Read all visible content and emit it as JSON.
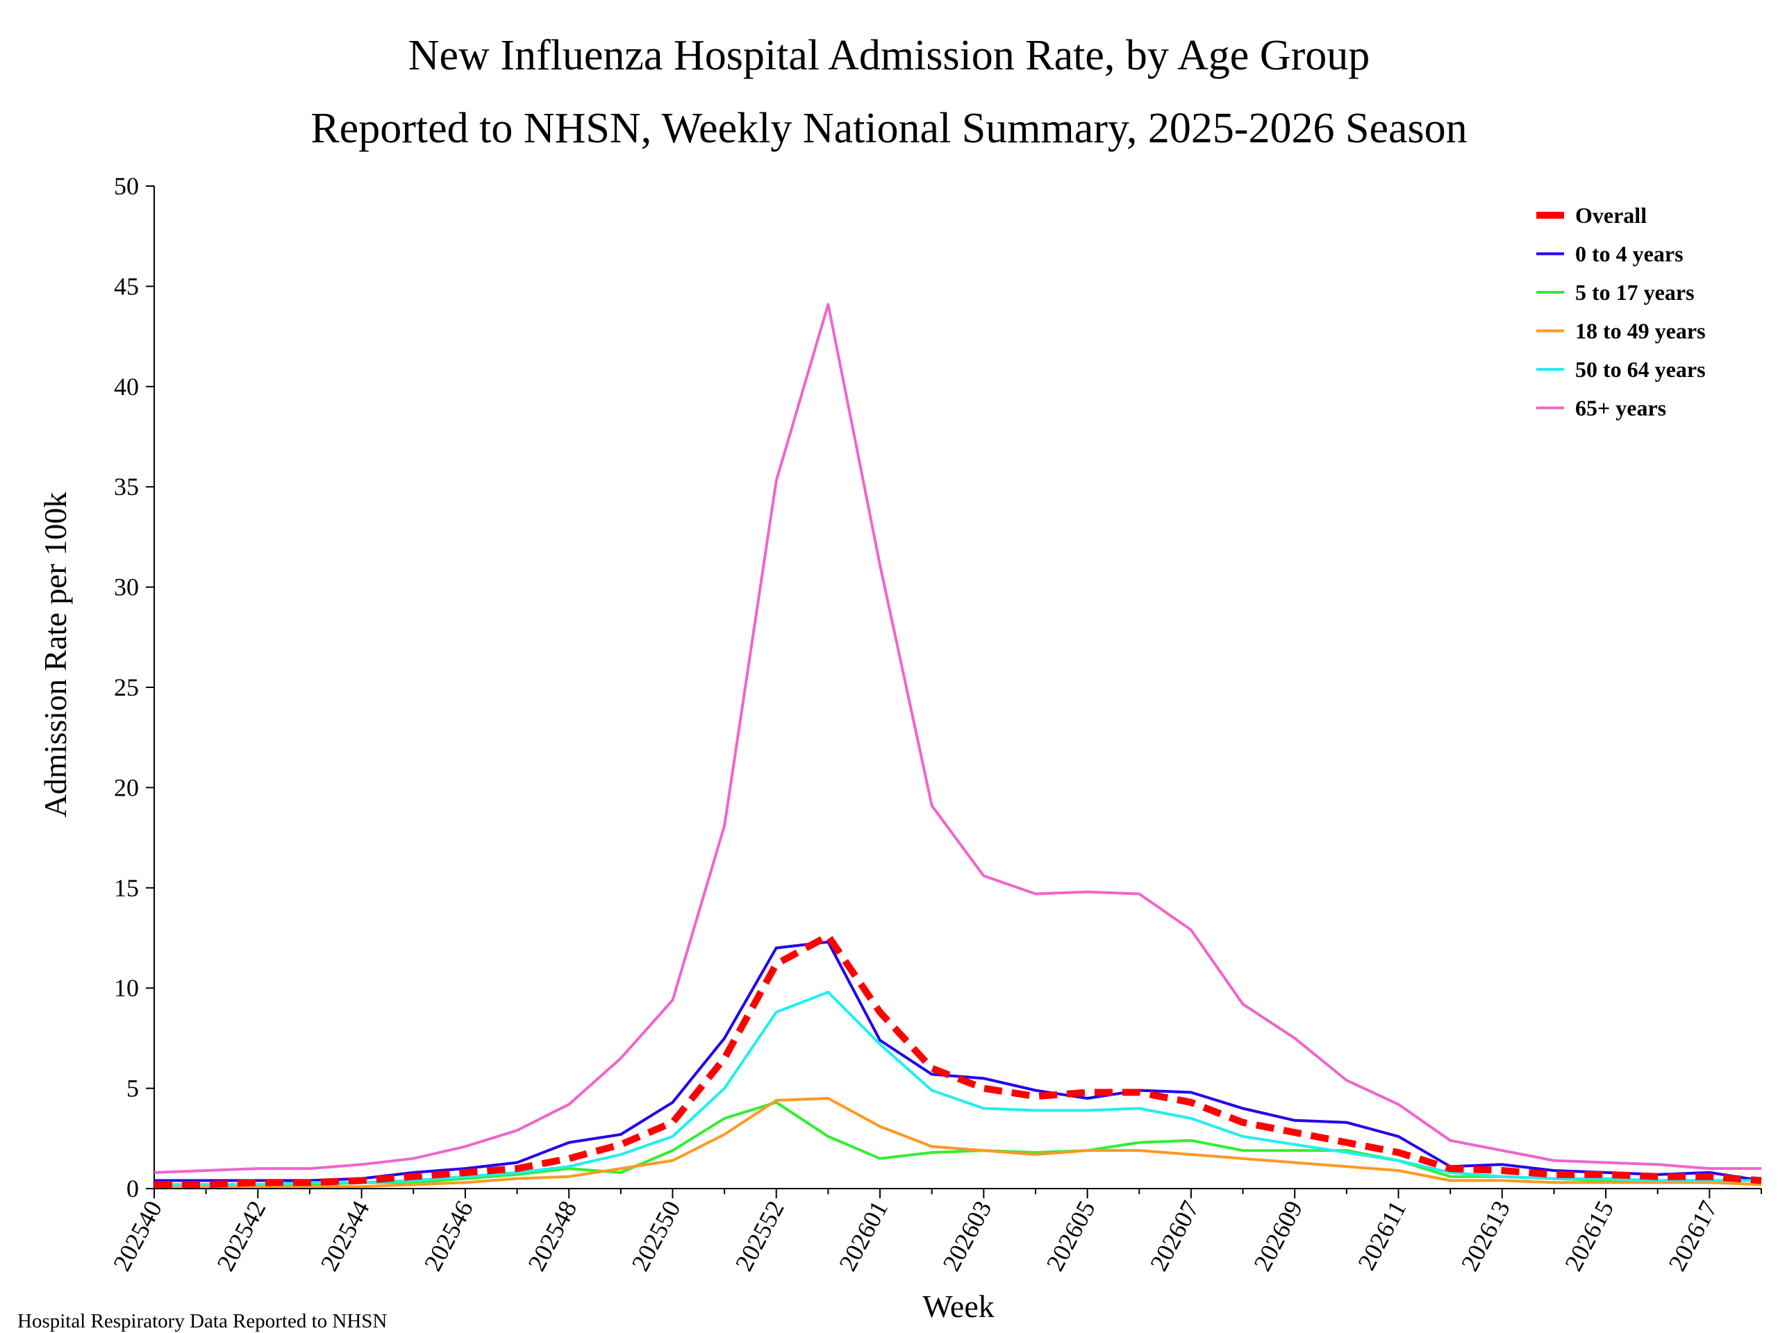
{
  "chart_data": {
    "type": "line",
    "title": "New Influenza Hospital Admission Rate, by Age Group",
    "subtitle": "Reported to NHSN, Weekly National Summary, 2025-2026 Season",
    "xlabel": "Week",
    "ylabel": "Admission Rate per 100k",
    "footnote": "Hospital Respiratory Data Reported to NHSN",
    "ylim": [
      0,
      50
    ],
    "yticks": [
      "0",
      "5",
      "10",
      "15",
      "20",
      "25",
      "30",
      "35",
      "40",
      "45",
      "50"
    ],
    "grid": false,
    "legend_position": "top-right",
    "x": [
      "202540",
      "202541",
      "202542",
      "202543",
      "202544",
      "202545",
      "202546",
      "202547",
      "202548",
      "202549",
      "202550",
      "202551",
      "202552",
      "202553",
      "202601",
      "202602",
      "202603",
      "202604",
      "202605",
      "202606",
      "202607",
      "202608",
      "202609",
      "202610",
      "202611",
      "202612",
      "202613",
      "202614",
      "202615",
      "202616",
      "202617",
      "202618"
    ],
    "xtick_labels": [
      "202540",
      "202542",
      "202544",
      "202546",
      "202548",
      "202550",
      "202552",
      "202601",
      "202603",
      "202605",
      "202607",
      "202609",
      "202611",
      "202613",
      "202615",
      "202617"
    ],
    "series": [
      {
        "name": "Overall",
        "color": "#ff0000",
        "dashed": true,
        "values": [
          0.2,
          0.2,
          0.3,
          0.3,
          0.4,
          0.6,
          0.8,
          1.0,
          1.5,
          2.2,
          3.3,
          6.5,
          11.2,
          12.6,
          8.8,
          6.0,
          5.0,
          4.6,
          4.8,
          4.8,
          4.3,
          3.3,
          2.8,
          2.3,
          1.8,
          1.0,
          0.9,
          0.7,
          0.7,
          0.6,
          0.6,
          0.4
        ]
      },
      {
        "name": "0 to 4 years",
        "color": "#2200ee",
        "values": [
          0.4,
          0.4,
          0.4,
          0.4,
          0.5,
          0.8,
          1.0,
          1.3,
          2.3,
          2.7,
          4.3,
          7.5,
          12.0,
          12.3,
          7.4,
          5.7,
          5.5,
          4.9,
          4.5,
          4.9,
          4.8,
          4.0,
          3.4,
          3.3,
          2.6,
          1.1,
          1.2,
          0.9,
          0.8,
          0.7,
          0.8,
          0.4
        ]
      },
      {
        "name": "5 to 17 years",
        "color": "#33ee33",
        "values": [
          0.2,
          0.2,
          0.2,
          0.2,
          0.3,
          0.3,
          0.5,
          0.7,
          1.0,
          0.8,
          1.9,
          3.5,
          4.3,
          2.6,
          1.5,
          1.8,
          1.9,
          1.8,
          1.9,
          2.3,
          2.4,
          1.9,
          1.9,
          1.9,
          1.4,
          0.6,
          0.6,
          0.5,
          0.4,
          0.4,
          0.4,
          0.4
        ]
      },
      {
        "name": "18 to 49 years",
        "color": "#ff9922",
        "values": [
          0.1,
          0.1,
          0.1,
          0.1,
          0.1,
          0.2,
          0.3,
          0.5,
          0.6,
          1.0,
          1.4,
          2.7,
          4.4,
          4.5,
          3.1,
          2.1,
          1.9,
          1.7,
          1.9,
          1.9,
          1.7,
          1.5,
          1.3,
          1.1,
          0.9,
          0.4,
          0.4,
          0.3,
          0.3,
          0.3,
          0.3,
          0.2
        ]
      },
      {
        "name": "50 to 64 years",
        "color": "#22eeee",
        "values": [
          0.2,
          0.2,
          0.2,
          0.3,
          0.3,
          0.4,
          0.6,
          0.8,
          1.1,
          1.7,
          2.6,
          5.0,
          8.8,
          9.8,
          7.2,
          4.9,
          4.0,
          3.9,
          3.9,
          4.0,
          3.5,
          2.6,
          2.2,
          1.8,
          1.4,
          0.8,
          0.6,
          0.5,
          0.5,
          0.4,
          0.4,
          0.4
        ]
      },
      {
        "name": "65+ years",
        "color": "#ee66cc",
        "values": [
          0.8,
          0.9,
          1.0,
          1.0,
          1.2,
          1.5,
          2.1,
          2.9,
          4.2,
          6.5,
          9.4,
          18.1,
          35.3,
          44.1,
          31.1,
          19.1,
          15.6,
          14.7,
          14.8,
          14.7,
          12.9,
          9.2,
          7.5,
          5.4,
          4.2,
          2.4,
          1.9,
          1.4,
          1.3,
          1.2,
          1.0,
          1.0
        ]
      }
    ]
  }
}
